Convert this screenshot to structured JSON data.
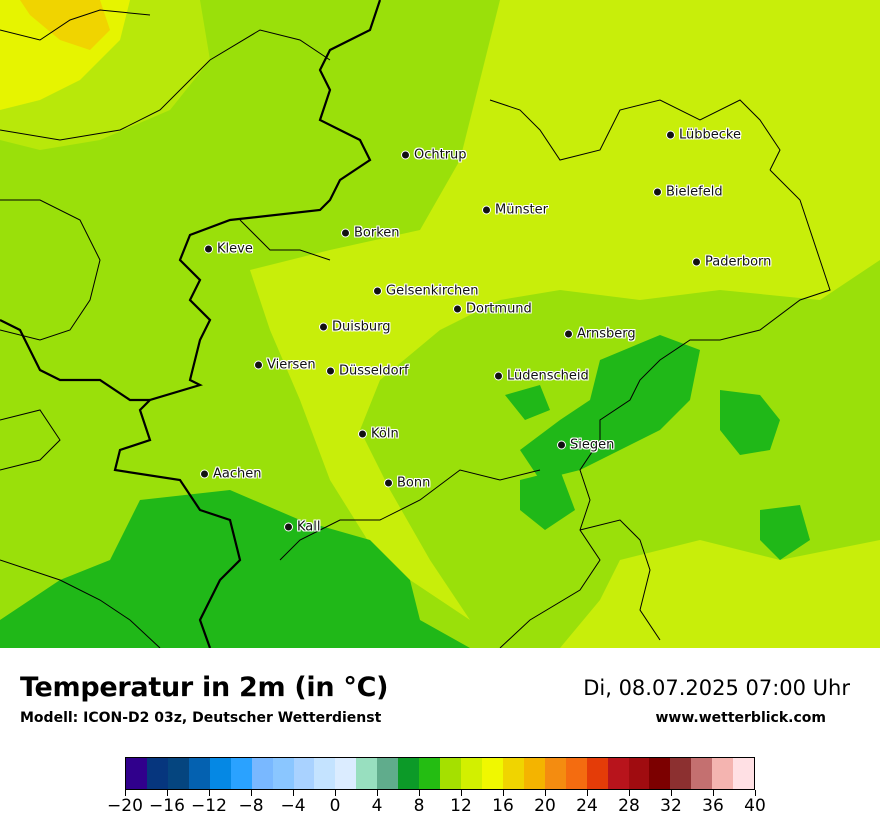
{
  "title": "Temperatur in 2m (in °C)",
  "model": "Modell: ICON-D2 03z, Deutscher Wetterdienst",
  "datetime": "Di, 08.07.2025 07:00 Uhr",
  "website": "www.wetterblick.com",
  "colors": {
    "field_base": "#9ae00a",
    "field_light": "#c8ee0a",
    "field_dark": "#20b818",
    "field_yellow": "#f0f800",
    "field_orange": "#f0d400",
    "border": "#000000"
  },
  "cities": [
    {
      "name": "Lübbecke"
    },
    {
      "name": "Ochtrup"
    },
    {
      "name": "Bielefeld"
    },
    {
      "name": "Münster"
    },
    {
      "name": "Borken"
    },
    {
      "name": "Kleve"
    },
    {
      "name": "Paderborn"
    },
    {
      "name": "Gelsenkirchen"
    },
    {
      "name": "Dortmund"
    },
    {
      "name": "Duisburg"
    },
    {
      "name": "Arnsberg"
    },
    {
      "name": "Viersen"
    },
    {
      "name": "Düsseldorf"
    },
    {
      "name": "Lüdenscheid"
    },
    {
      "name": "Köln"
    },
    {
      "name": "Siegen"
    },
    {
      "name": "Aachen"
    },
    {
      "name": "Bonn"
    },
    {
      "name": "Kall"
    }
  ],
  "legend": {
    "colors": [
      "#30008c",
      "#06367e",
      "#05457f",
      "#0461b0",
      "#0588e4",
      "#2aa2ff",
      "#79b8ff",
      "#8ac6ff",
      "#a9d2ff",
      "#c4e3ff",
      "#dbecff",
      "#98dfbf",
      "#60ac8c",
      "#0c9a28",
      "#24bd12",
      "#a5e000",
      "#d2f000",
      "#f0f800",
      "#f0d400",
      "#f4b400",
      "#f48c10",
      "#f46c10",
      "#e43c08",
      "#b8141c",
      "#a00c10",
      "#7c0000",
      "#8c3030",
      "#c47070",
      "#f4b4b0",
      "#ffe0e4"
    ],
    "ticks": [
      "−20",
      "−16",
      "−12",
      "−8",
      "−4",
      "0",
      "4",
      "8",
      "12",
      "16",
      "20",
      "24",
      "28",
      "32",
      "36",
      "40"
    ]
  }
}
